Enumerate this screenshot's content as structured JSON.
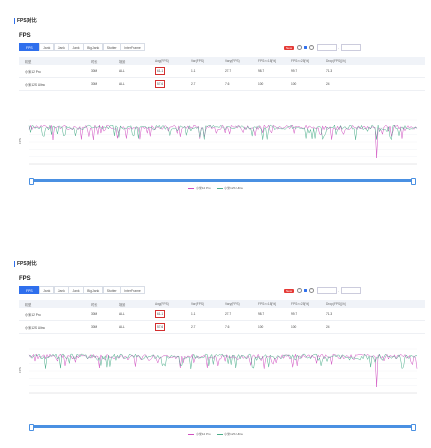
{
  "panels": [
    {
      "section_title": "FPS对比",
      "heading": "FPS",
      "tabs": [
        "FPS",
        "Jank",
        "Jank",
        "Jank",
        "BigJank",
        "Stutter",
        "InterFrame"
      ],
      "controls": {
        "badge": "New",
        "option1": "",
        "option2": "",
        "range_from": "",
        "range_to": "",
        "go": ""
      },
      "table": {
        "headers": [
          "机型",
          "时长",
          "场景",
          "Avg(FPS)",
          "Var(FPS)",
          "Vary(FPS)",
          "FPS>=18[%]",
          "FPS>=25[%]",
          "Drop(FPS)[/h]"
        ],
        "rows": [
          [
            "小米12 Pro",
            "30M",
            "ALL",
            "61.1",
            "1.1",
            "27.7",
            "98.7",
            "99.7",
            "71.3"
          ],
          [
            "小米12S Ultra",
            "30M",
            "ALL",
            "57.6",
            "2.7",
            "7.6",
            "100",
            "100",
            "24"
          ]
        ]
      },
      "legend": [
        "小米12 Pro",
        "小米12S Ultra"
      ]
    },
    {
      "section_title": "FPS对比",
      "heading": "FPS",
      "tabs": [
        "FPS",
        "Jank",
        "Jank",
        "Jank",
        "BigJank",
        "Stutter",
        "InterFrame"
      ],
      "controls": {
        "badge": "New",
        "option1": "",
        "option2": "",
        "range_from": "",
        "range_to": "",
        "go": ""
      },
      "table": {
        "headers": [
          "机型",
          "时长",
          "场景",
          "Avg(FPS)",
          "Var(FPS)",
          "Vary(FPS)",
          "FPS>=18[%]",
          "FPS>=25[%]",
          "Drop(FPS)[/h]"
        ],
        "rows": [
          [
            "小米12 Pro",
            "30M",
            "ALL",
            "61.1",
            "1.1",
            "27.7",
            "98.7",
            "99.7",
            "71.3"
          ],
          [
            "小米12S Ultra",
            "30M",
            "ALL",
            "57.6",
            "2.7",
            "7.6",
            "100",
            "100",
            "24"
          ]
        ]
      },
      "legend": [
        "小米12 Pro",
        "小米12S Ultra"
      ]
    }
  ],
  "colors": {
    "series1": "#d04fc0",
    "series2": "#4cae8a",
    "accent": "#2f6fed",
    "highlight": "#d32f2f"
  },
  "chart_data": [
    {
      "type": "line",
      "ylabel": "FPS",
      "series": [
        {
          "name": "小米12 Pro"
        },
        {
          "name": "小米12S Ultra"
        }
      ]
    },
    {
      "type": "line",
      "ylabel": "FPS",
      "series": [
        {
          "name": "小米12 Pro"
        },
        {
          "name": "小米12S Ultra"
        }
      ]
    }
  ]
}
